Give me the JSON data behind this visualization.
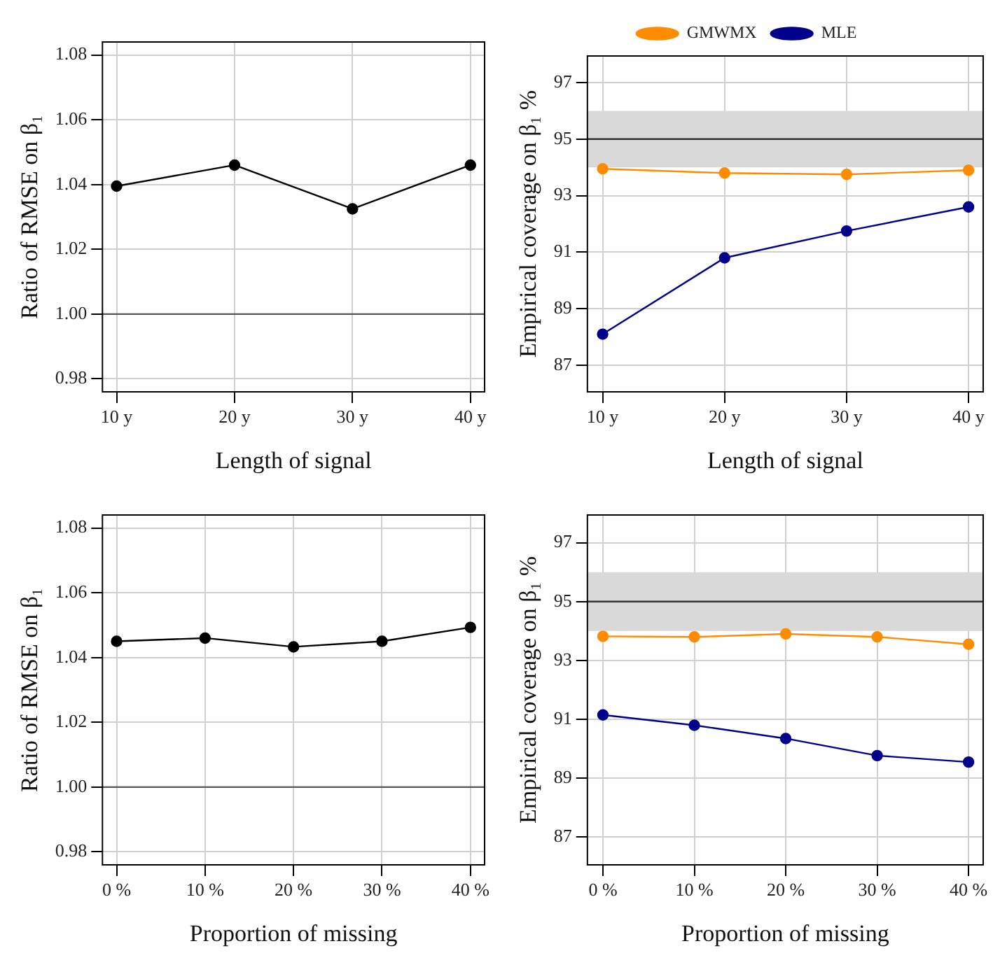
{
  "chart_data": [
    {
      "type": "line",
      "xlabel": "Length of signal",
      "ylabel": "Ratio of RMSE on β₁",
      "x": [
        10,
        20,
        30,
        40
      ],
      "xlim": [
        8.8,
        41.2
      ],
      "xticks": [
        {
          "value": 10,
          "label": "10 y"
        },
        {
          "value": 20,
          "label": "20 y"
        },
        {
          "value": 30,
          "label": "30 y"
        },
        {
          "value": 40,
          "label": "40 y"
        }
      ],
      "ylim": [
        0.976,
        1.084
      ],
      "yticks": [
        0.98,
        {
          "value": 1,
          "label": "1.00"
        },
        1.02,
        1.04,
        1.06,
        1.08
      ],
      "grid": true,
      "marker": "circle",
      "line_style": "solid",
      "series": [
        {
          "color": "#000000",
          "values": [
            1.0395,
            1.046,
            1.0325,
            1.046
          ]
        }
      ],
      "ref_lines": [
        {
          "axis": "y",
          "value": 1,
          "color": "#555555"
        }
      ]
    },
    {
      "type": "line",
      "xlabel": "Length of signal",
      "ylabel": "Empirical coverage on β₁ %",
      "x": [
        10,
        20,
        30,
        40
      ],
      "xlim": [
        8.75,
        41.2
      ],
      "xticks": [
        {
          "value": 10,
          "label": "10 y"
        },
        {
          "value": 20,
          "label": "20 y"
        },
        {
          "value": 30,
          "label": "30 y"
        },
        {
          "value": 40,
          "label": "40 y"
        }
      ],
      "ylim": [
        86.06,
        97.94
      ],
      "yticks": [
        87,
        89,
        91,
        93,
        95,
        97
      ],
      "grid": true,
      "marker": "circle",
      "line_style": "solid",
      "legend": "top",
      "series": [
        {
          "name": "GMWMX",
          "color": "#ff8c00",
          "values": [
            93.95,
            93.8,
            93.75,
            93.9
          ]
        },
        {
          "name": "MLE",
          "color": "#00008b",
          "values": [
            88.1,
            90.8,
            91.75,
            92.6
          ]
        }
      ],
      "bands": [
        {
          "axis": "y",
          "from": 94,
          "to": 96,
          "color": "#d9d9d9"
        }
      ],
      "ref_lines": [
        {
          "axis": "y",
          "value": 95,
          "color": "#333333"
        }
      ]
    },
    {
      "type": "line",
      "xlabel": "Proportion of missing",
      "ylabel": "Ratio of RMSE on β₁",
      "x": [
        0,
        10,
        20,
        30,
        40
      ],
      "xlim": [
        -1.6,
        41.6
      ],
      "xticks": [
        {
          "value": 0,
          "label": "0 %"
        },
        {
          "value": 10,
          "label": "10 %"
        },
        {
          "value": 20,
          "label": "20 %"
        },
        {
          "value": 30,
          "label": "30 %"
        },
        {
          "value": 40,
          "label": "40 %"
        }
      ],
      "ylim": [
        0.976,
        1.084
      ],
      "yticks": [
        0.98,
        {
          "value": 1,
          "label": "1.00"
        },
        1.02,
        1.04,
        1.06,
        1.08
      ],
      "grid": true,
      "marker": "circle",
      "line_style": "solid",
      "series": [
        {
          "color": "#000000",
          "values": [
            1.045,
            1.046,
            1.0433,
            1.045,
            1.0493
          ]
        }
      ],
      "ref_lines": [
        {
          "axis": "y",
          "value": 1,
          "color": "#555555"
        }
      ]
    },
    {
      "type": "line",
      "xlabel": "Proportion of missing",
      "ylabel": "Empirical coverage on β₁ %",
      "x": [
        0,
        10,
        20,
        30,
        40
      ],
      "xlim": [
        -1.7,
        41.6
      ],
      "xticks": [
        {
          "value": 0,
          "label": "0 %"
        },
        {
          "value": 10,
          "label": "10 %"
        },
        {
          "value": 20,
          "label": "20 %"
        },
        {
          "value": 30,
          "label": "30 %"
        },
        {
          "value": 40,
          "label": "40 %"
        }
      ],
      "ylim": [
        86.06,
        97.94
      ],
      "yticks": [
        87,
        89,
        91,
        93,
        95,
        97
      ],
      "grid": true,
      "marker": "circle",
      "line_style": "solid",
      "series": [
        {
          "color": "#ff8c00",
          "values": [
            93.82,
            93.8,
            93.9,
            93.8,
            93.55
          ]
        },
        {
          "color": "#00008b",
          "values": [
            91.15,
            90.8,
            90.35,
            89.77,
            89.55
          ]
        }
      ],
      "bands": [
        {
          "axis": "y",
          "from": 94,
          "to": 96,
          "color": "#d9d9d9"
        }
      ],
      "ref_lines": [
        {
          "axis": "y",
          "value": 95,
          "color": "#333333"
        }
      ]
    }
  ]
}
